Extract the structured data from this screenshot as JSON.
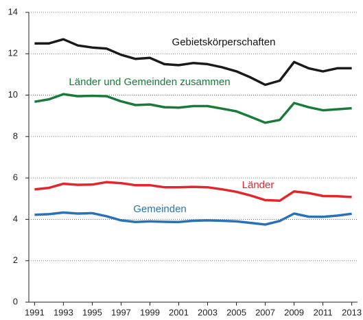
{
  "chart_data": {
    "type": "line",
    "x": [
      1991,
      1992,
      1993,
      1994,
      1995,
      1996,
      1997,
      1998,
      1999,
      2000,
      2001,
      2002,
      2003,
      2004,
      2005,
      2006,
      2007,
      2008,
      2009,
      2010,
      2011,
      2012,
      2013
    ],
    "series": [
      {
        "name": "Gebietskörperschaften",
        "color": "#1a1a1a",
        "values": [
          12.5,
          12.5,
          12.7,
          12.4,
          12.3,
          12.25,
          11.95,
          11.75,
          11.8,
          11.5,
          11.45,
          11.55,
          11.5,
          11.35,
          11.15,
          10.85,
          10.5,
          10.7,
          11.6,
          11.3,
          11.15,
          11.3,
          11.3
        ]
      },
      {
        "name": "Länder und Gemeinden zusammen",
        "color": "#1a7a3a",
        "values": [
          9.68,
          9.8,
          10.05,
          9.95,
          9.97,
          9.95,
          9.7,
          9.52,
          9.55,
          9.42,
          9.4,
          9.47,
          9.47,
          9.35,
          9.22,
          8.95,
          8.67,
          8.8,
          9.62,
          9.42,
          9.27,
          9.32,
          9.37
        ]
      },
      {
        "name": "Länder",
        "color": "#e3262b",
        "values": [
          5.45,
          5.52,
          5.72,
          5.67,
          5.68,
          5.8,
          5.75,
          5.65,
          5.65,
          5.55,
          5.55,
          5.57,
          5.55,
          5.45,
          5.33,
          5.15,
          4.93,
          4.9,
          5.35,
          5.27,
          5.13,
          5.12,
          5.08
        ]
      },
      {
        "name": "Gemeinden",
        "color": "#2a72b8",
        "values": [
          4.22,
          4.25,
          4.33,
          4.28,
          4.3,
          4.15,
          3.95,
          3.87,
          3.9,
          3.88,
          3.87,
          3.93,
          3.95,
          3.93,
          3.9,
          3.83,
          3.75,
          3.92,
          4.28,
          4.13,
          4.12,
          4.18,
          4.27
        ]
      }
    ],
    "xlim": [
      1990.6,
      2013.4
    ],
    "xticks": [
      1991,
      1993,
      1995,
      1997,
      1999,
      2001,
      2003,
      2005,
      2007,
      2009,
      2011,
      2013
    ],
    "ylim": [
      0,
      14
    ],
    "yticks": [
      0,
      2,
      4,
      6,
      8,
      10,
      12,
      14
    ],
    "grid": true
  }
}
